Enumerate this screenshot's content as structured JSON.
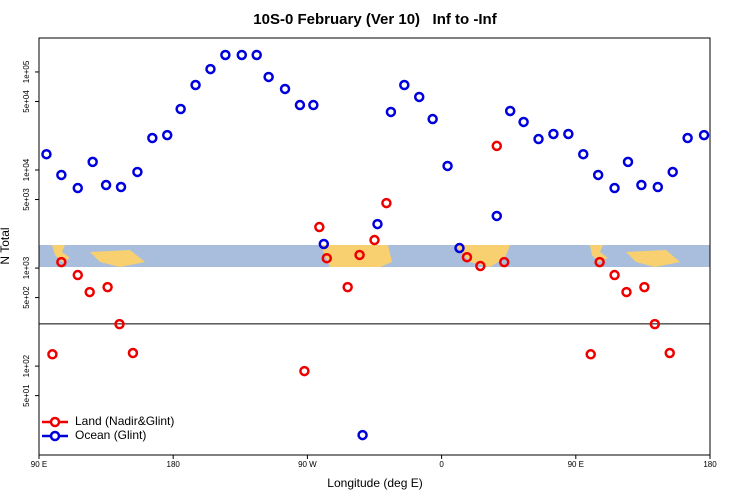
{
  "chart_data": {
    "type": "scatter",
    "title": "10S-0 February (Ver 10)   Inf to -Inf",
    "xlabel": "Longitude (deg E)",
    "ylabel": "N Total",
    "xlim": [
      90,
      540
    ],
    "xticks": [
      {
        "value": 90,
        "label": "90 E"
      },
      {
        "value": 180,
        "label": "180"
      },
      {
        "value": 270,
        "label": "90 W"
      },
      {
        "value": 360,
        "label": "0"
      },
      {
        "value": 450,
        "label": "90 E"
      },
      {
        "value": 540,
        "label": "180"
      }
    ],
    "ylim": [
      12.4,
      222000
    ],
    "log_y": true,
    "yticks": [
      {
        "value": 50,
        "label": "5e+01"
      },
      {
        "value": 100,
        "label": "1e+02"
      },
      {
        "value": 500,
        "label": "5e+02"
      },
      {
        "value": 1000,
        "label": "1e+03"
      },
      {
        "value": 5000,
        "label": "5e+03"
      },
      {
        "value": 10000,
        "label": "1e+04"
      },
      {
        "value": 50000,
        "label": "5e+04"
      },
      {
        "value": 100000,
        "label": "1e+05"
      }
    ],
    "hline": 270,
    "legend": "bottomleft",
    "series": [
      {
        "name": "Land (Nadir&Glint)",
        "color": "#ee0000",
        "x": [
          99,
          105,
          116,
          124,
          136,
          144,
          153,
          268,
          278,
          283,
          297,
          305,
          315,
          323,
          377,
          386,
          397,
          402,
          460,
          466,
          476,
          484,
          496,
          503,
          513
        ],
        "values": [
          132,
          1150,
          849,
          569,
          639,
          268,
          136,
          89,
          2620,
          1260,
          639,
          1360,
          1930,
          4600,
          1290,
          1050,
          17600,
          1150,
          132,
          1150,
          849,
          569,
          639,
          268,
          136
        ]
      },
      {
        "name": "Ocean (Glint)",
        "color": "#0000dd",
        "x": [
          95,
          105,
          116,
          126,
          135,
          145,
          156,
          166,
          176,
          185,
          195,
          205,
          215,
          226,
          236,
          244,
          255,
          265,
          274,
          281,
          307,
          317,
          326,
          335,
          345,
          354,
          364,
          372,
          397,
          406,
          415,
          425,
          435,
          445,
          455,
          465,
          476,
          485,
          494,
          505,
          515,
          525,
          536
        ],
        "values": [
          14500,
          8900,
          6550,
          12100,
          7030,
          6710,
          9550,
          21200,
          22700,
          41900,
          73600,
          107000,
          149000,
          149000,
          149000,
          88900,
          67100,
          46000,
          46000,
          1760,
          19.8,
          2810,
          39100,
          73600,
          55600,
          33100,
          11000,
          1600,
          3400,
          40000,
          30900,
          20700,
          23300,
          23300,
          14500,
          8900,
          6550,
          12100,
          7030,
          6710,
          9550,
          21200,
          22700
        ]
      }
    ]
  }
}
